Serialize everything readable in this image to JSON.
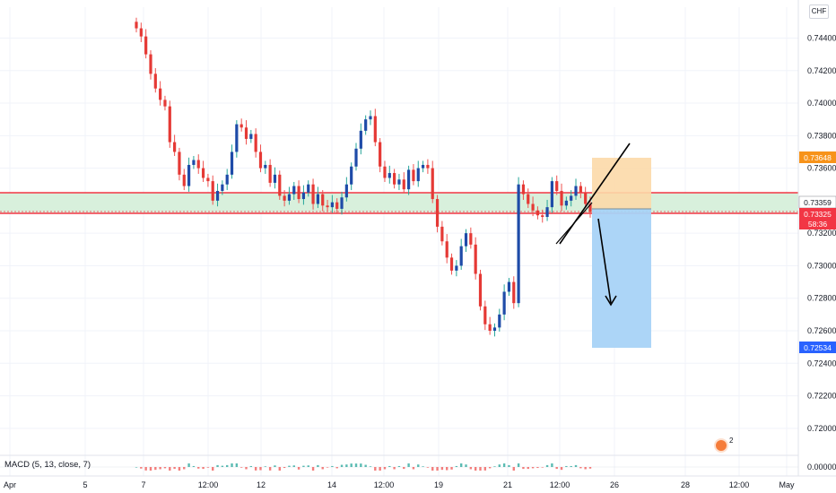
{
  "header": {
    "currency": "CHF"
  },
  "indicator": {
    "label": "MACD (5, 13, close, 7)"
  },
  "events": {
    "count": "2"
  },
  "colors": {
    "up": "#26a69a",
    "down": "#ef5350",
    "candle_up_body": "#1e4ba8",
    "candle_down_body": "#e53935",
    "zone_fill": "#d8f0dc",
    "zone_line": "#f23645",
    "profit_zone": "#fcd9a8",
    "loss_zone": "#a8d3f7",
    "label_red": "#f23645",
    "label_orange": "#f7931a",
    "label_blue": "#2962ff"
  },
  "chart_data": {
    "type": "candlestick",
    "symbol_currency": "CHF",
    "ylim": [
      0.719,
      0.7459
    ],
    "y_ticks": [
      "0.74400",
      "0.74200",
      "0.74000",
      "0.73800",
      "0.73600",
      "0.73200",
      "0.73000",
      "0.72800",
      "0.72600",
      "0.72400",
      "0.72200",
      "0.72000"
    ],
    "macd_tick": "0.00000",
    "x_ticks": [
      "Apr",
      "5",
      "7",
      "12:00",
      "12",
      "14",
      "12:00",
      "19",
      "21",
      "12:00",
      "26",
      "28",
      "12:00",
      "May"
    ],
    "price_labels": [
      {
        "value": "0.73648",
        "kind": "target"
      },
      {
        "value": "0.73359",
        "kind": "entry"
      },
      {
        "value": "0.73325",
        "kind": "current"
      },
      {
        "value": "58:36",
        "kind": "countdown"
      },
      {
        "value": "0.72534",
        "kind": "stop"
      }
    ],
    "support_resistance_zone": [
      0.73325,
      0.7345
    ],
    "position": {
      "entry": 0.73359,
      "upper": 0.73648,
      "lower": 0.72534
    },
    "series_close": [
      0.7446,
      0.7441,
      0.743,
      0.7418,
      0.7409,
      0.7402,
      0.7398,
      0.7376,
      0.737,
      0.7356,
      0.7349,
      0.7362,
      0.7365,
      0.736,
      0.7354,
      0.7352,
      0.734,
      0.7346,
      0.735,
      0.7356,
      0.737,
      0.7387,
      0.7385,
      0.7378,
      0.7381,
      0.737,
      0.736,
      0.7362,
      0.7351,
      0.7356,
      0.7343,
      0.734,
      0.7344,
      0.7349,
      0.7341,
      0.7345,
      0.735,
      0.7338,
      0.7344,
      0.7337,
      0.7336,
      0.7339,
      0.7335,
      0.7342,
      0.735,
      0.7361,
      0.7372,
      0.7383,
      0.739,
      0.7392,
      0.7376,
      0.7361,
      0.7354,
      0.7357,
      0.735,
      0.7353,
      0.7347,
      0.7359,
      0.7352,
      0.736,
      0.7362,
      0.736,
      0.7341,
      0.7324,
      0.7315,
      0.7305,
      0.7297,
      0.73,
      0.7312,
      0.732,
      0.7313,
      0.7295,
      0.7275,
      0.7264,
      0.726,
      0.7262,
      0.727,
      0.7284,
      0.729,
      0.7277,
      0.735,
      0.7344,
      0.7338,
      0.7334,
      0.7331,
      0.733,
      0.7336,
      0.7352,
      0.7346,
      0.7337,
      0.734,
      0.7343,
      0.7349,
      0.7345,
      0.7338,
      0.7333
    ]
  }
}
